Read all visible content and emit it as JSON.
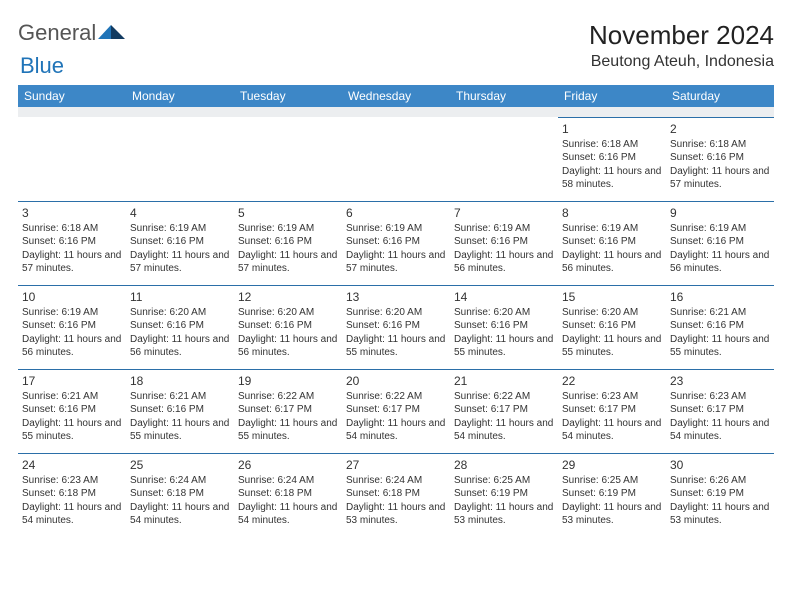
{
  "logo": {
    "text1": "General",
    "text2": "Blue"
  },
  "title": "November 2024",
  "subtitle": "Beutong Ateuh, Indonesia",
  "colors": {
    "header_bg": "#3d87c7",
    "header_text": "#ffffff",
    "border": "#2b6fa8",
    "spacer_bg": "#eceef0",
    "logo_blue": "#2074b8"
  },
  "day_headers": [
    "Sunday",
    "Monday",
    "Tuesday",
    "Wednesday",
    "Thursday",
    "Friday",
    "Saturday"
  ],
  "weeks": [
    [
      null,
      null,
      null,
      null,
      null,
      {
        "n": "1",
        "sr": "Sunrise: 6:18 AM",
        "ss": "Sunset: 6:16 PM",
        "d": "Daylight: 11 hours and 58 minutes."
      },
      {
        "n": "2",
        "sr": "Sunrise: 6:18 AM",
        "ss": "Sunset: 6:16 PM",
        "d": "Daylight: 11 hours and 57 minutes."
      }
    ],
    [
      {
        "n": "3",
        "sr": "Sunrise: 6:18 AM",
        "ss": "Sunset: 6:16 PM",
        "d": "Daylight: 11 hours and 57 minutes."
      },
      {
        "n": "4",
        "sr": "Sunrise: 6:19 AM",
        "ss": "Sunset: 6:16 PM",
        "d": "Daylight: 11 hours and 57 minutes."
      },
      {
        "n": "5",
        "sr": "Sunrise: 6:19 AM",
        "ss": "Sunset: 6:16 PM",
        "d": "Daylight: 11 hours and 57 minutes."
      },
      {
        "n": "6",
        "sr": "Sunrise: 6:19 AM",
        "ss": "Sunset: 6:16 PM",
        "d": "Daylight: 11 hours and 57 minutes."
      },
      {
        "n": "7",
        "sr": "Sunrise: 6:19 AM",
        "ss": "Sunset: 6:16 PM",
        "d": "Daylight: 11 hours and 56 minutes."
      },
      {
        "n": "8",
        "sr": "Sunrise: 6:19 AM",
        "ss": "Sunset: 6:16 PM",
        "d": "Daylight: 11 hours and 56 minutes."
      },
      {
        "n": "9",
        "sr": "Sunrise: 6:19 AM",
        "ss": "Sunset: 6:16 PM",
        "d": "Daylight: 11 hours and 56 minutes."
      }
    ],
    [
      {
        "n": "10",
        "sr": "Sunrise: 6:19 AM",
        "ss": "Sunset: 6:16 PM",
        "d": "Daylight: 11 hours and 56 minutes."
      },
      {
        "n": "11",
        "sr": "Sunrise: 6:20 AM",
        "ss": "Sunset: 6:16 PM",
        "d": "Daylight: 11 hours and 56 minutes."
      },
      {
        "n": "12",
        "sr": "Sunrise: 6:20 AM",
        "ss": "Sunset: 6:16 PM",
        "d": "Daylight: 11 hours and 56 minutes."
      },
      {
        "n": "13",
        "sr": "Sunrise: 6:20 AM",
        "ss": "Sunset: 6:16 PM",
        "d": "Daylight: 11 hours and 55 minutes."
      },
      {
        "n": "14",
        "sr": "Sunrise: 6:20 AM",
        "ss": "Sunset: 6:16 PM",
        "d": "Daylight: 11 hours and 55 minutes."
      },
      {
        "n": "15",
        "sr": "Sunrise: 6:20 AM",
        "ss": "Sunset: 6:16 PM",
        "d": "Daylight: 11 hours and 55 minutes."
      },
      {
        "n": "16",
        "sr": "Sunrise: 6:21 AM",
        "ss": "Sunset: 6:16 PM",
        "d": "Daylight: 11 hours and 55 minutes."
      }
    ],
    [
      {
        "n": "17",
        "sr": "Sunrise: 6:21 AM",
        "ss": "Sunset: 6:16 PM",
        "d": "Daylight: 11 hours and 55 minutes."
      },
      {
        "n": "18",
        "sr": "Sunrise: 6:21 AM",
        "ss": "Sunset: 6:16 PM",
        "d": "Daylight: 11 hours and 55 minutes."
      },
      {
        "n": "19",
        "sr": "Sunrise: 6:22 AM",
        "ss": "Sunset: 6:17 PM",
        "d": "Daylight: 11 hours and 55 minutes."
      },
      {
        "n": "20",
        "sr": "Sunrise: 6:22 AM",
        "ss": "Sunset: 6:17 PM",
        "d": "Daylight: 11 hours and 54 minutes."
      },
      {
        "n": "21",
        "sr": "Sunrise: 6:22 AM",
        "ss": "Sunset: 6:17 PM",
        "d": "Daylight: 11 hours and 54 minutes."
      },
      {
        "n": "22",
        "sr": "Sunrise: 6:23 AM",
        "ss": "Sunset: 6:17 PM",
        "d": "Daylight: 11 hours and 54 minutes."
      },
      {
        "n": "23",
        "sr": "Sunrise: 6:23 AM",
        "ss": "Sunset: 6:17 PM",
        "d": "Daylight: 11 hours and 54 minutes."
      }
    ],
    [
      {
        "n": "24",
        "sr": "Sunrise: 6:23 AM",
        "ss": "Sunset: 6:18 PM",
        "d": "Daylight: 11 hours and 54 minutes."
      },
      {
        "n": "25",
        "sr": "Sunrise: 6:24 AM",
        "ss": "Sunset: 6:18 PM",
        "d": "Daylight: 11 hours and 54 minutes."
      },
      {
        "n": "26",
        "sr": "Sunrise: 6:24 AM",
        "ss": "Sunset: 6:18 PM",
        "d": "Daylight: 11 hours and 54 minutes."
      },
      {
        "n": "27",
        "sr": "Sunrise: 6:24 AM",
        "ss": "Sunset: 6:18 PM",
        "d": "Daylight: 11 hours and 53 minutes."
      },
      {
        "n": "28",
        "sr": "Sunrise: 6:25 AM",
        "ss": "Sunset: 6:19 PM",
        "d": "Daylight: 11 hours and 53 minutes."
      },
      {
        "n": "29",
        "sr": "Sunrise: 6:25 AM",
        "ss": "Sunset: 6:19 PM",
        "d": "Daylight: 11 hours and 53 minutes."
      },
      {
        "n": "30",
        "sr": "Sunrise: 6:26 AM",
        "ss": "Sunset: 6:19 PM",
        "d": "Daylight: 11 hours and 53 minutes."
      }
    ]
  ]
}
